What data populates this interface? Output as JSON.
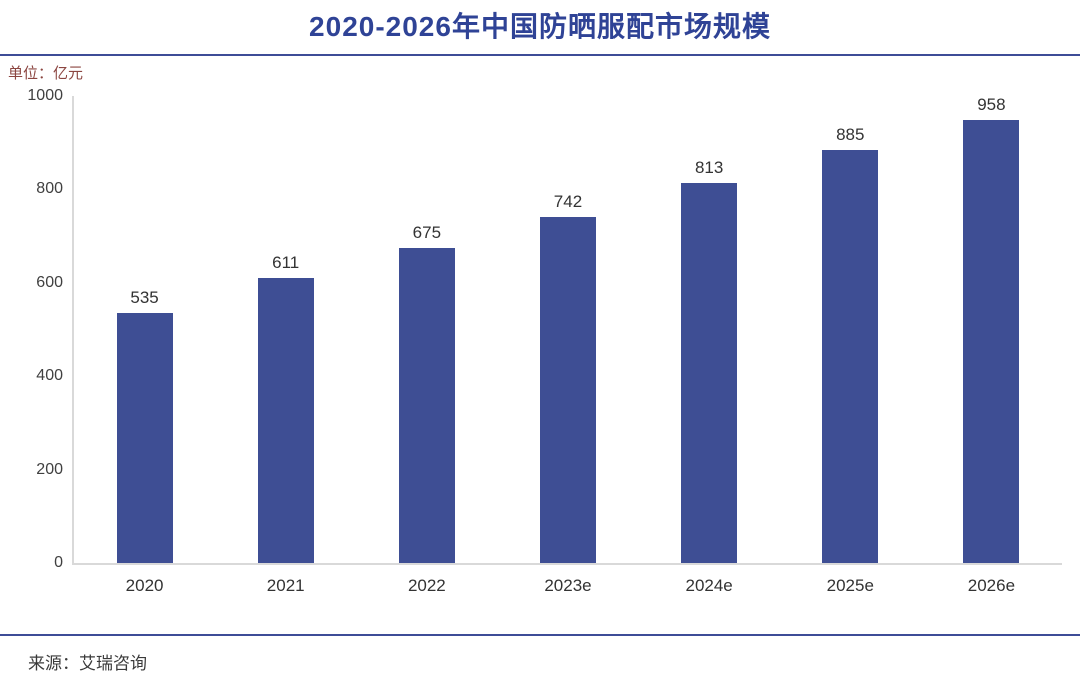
{
  "page": {
    "title": "2020-2026年中国防晒服配市场规模",
    "unit_label": "单位：亿元",
    "source": "来源：艾瑞咨询"
  },
  "colors": {
    "title": "#2F4396",
    "bar": "#3E4E94",
    "divider": "#3D4C97",
    "unit_label": "#8B4540",
    "axis_text": "#404040",
    "value_text": "#333333",
    "source_text": "#3A3A3A",
    "axis_line": "#D9D9D9"
  },
  "chart_data": {
    "type": "bar",
    "title": "2020-2026年中国防晒服配市场规模",
    "unit": "亿元",
    "categories": [
      "2020",
      "2021",
      "2022",
      "2023e",
      "2024e",
      "2025e",
      "2026e"
    ],
    "values": [
      535,
      611,
      675,
      742,
      813,
      885,
      958
    ],
    "xlabel": "",
    "ylabel": "亿元",
    "ylim": [
      0,
      1000
    ],
    "ytick_step": 200,
    "grid": false,
    "legend": "none",
    "source": "艾瑞咨询"
  }
}
